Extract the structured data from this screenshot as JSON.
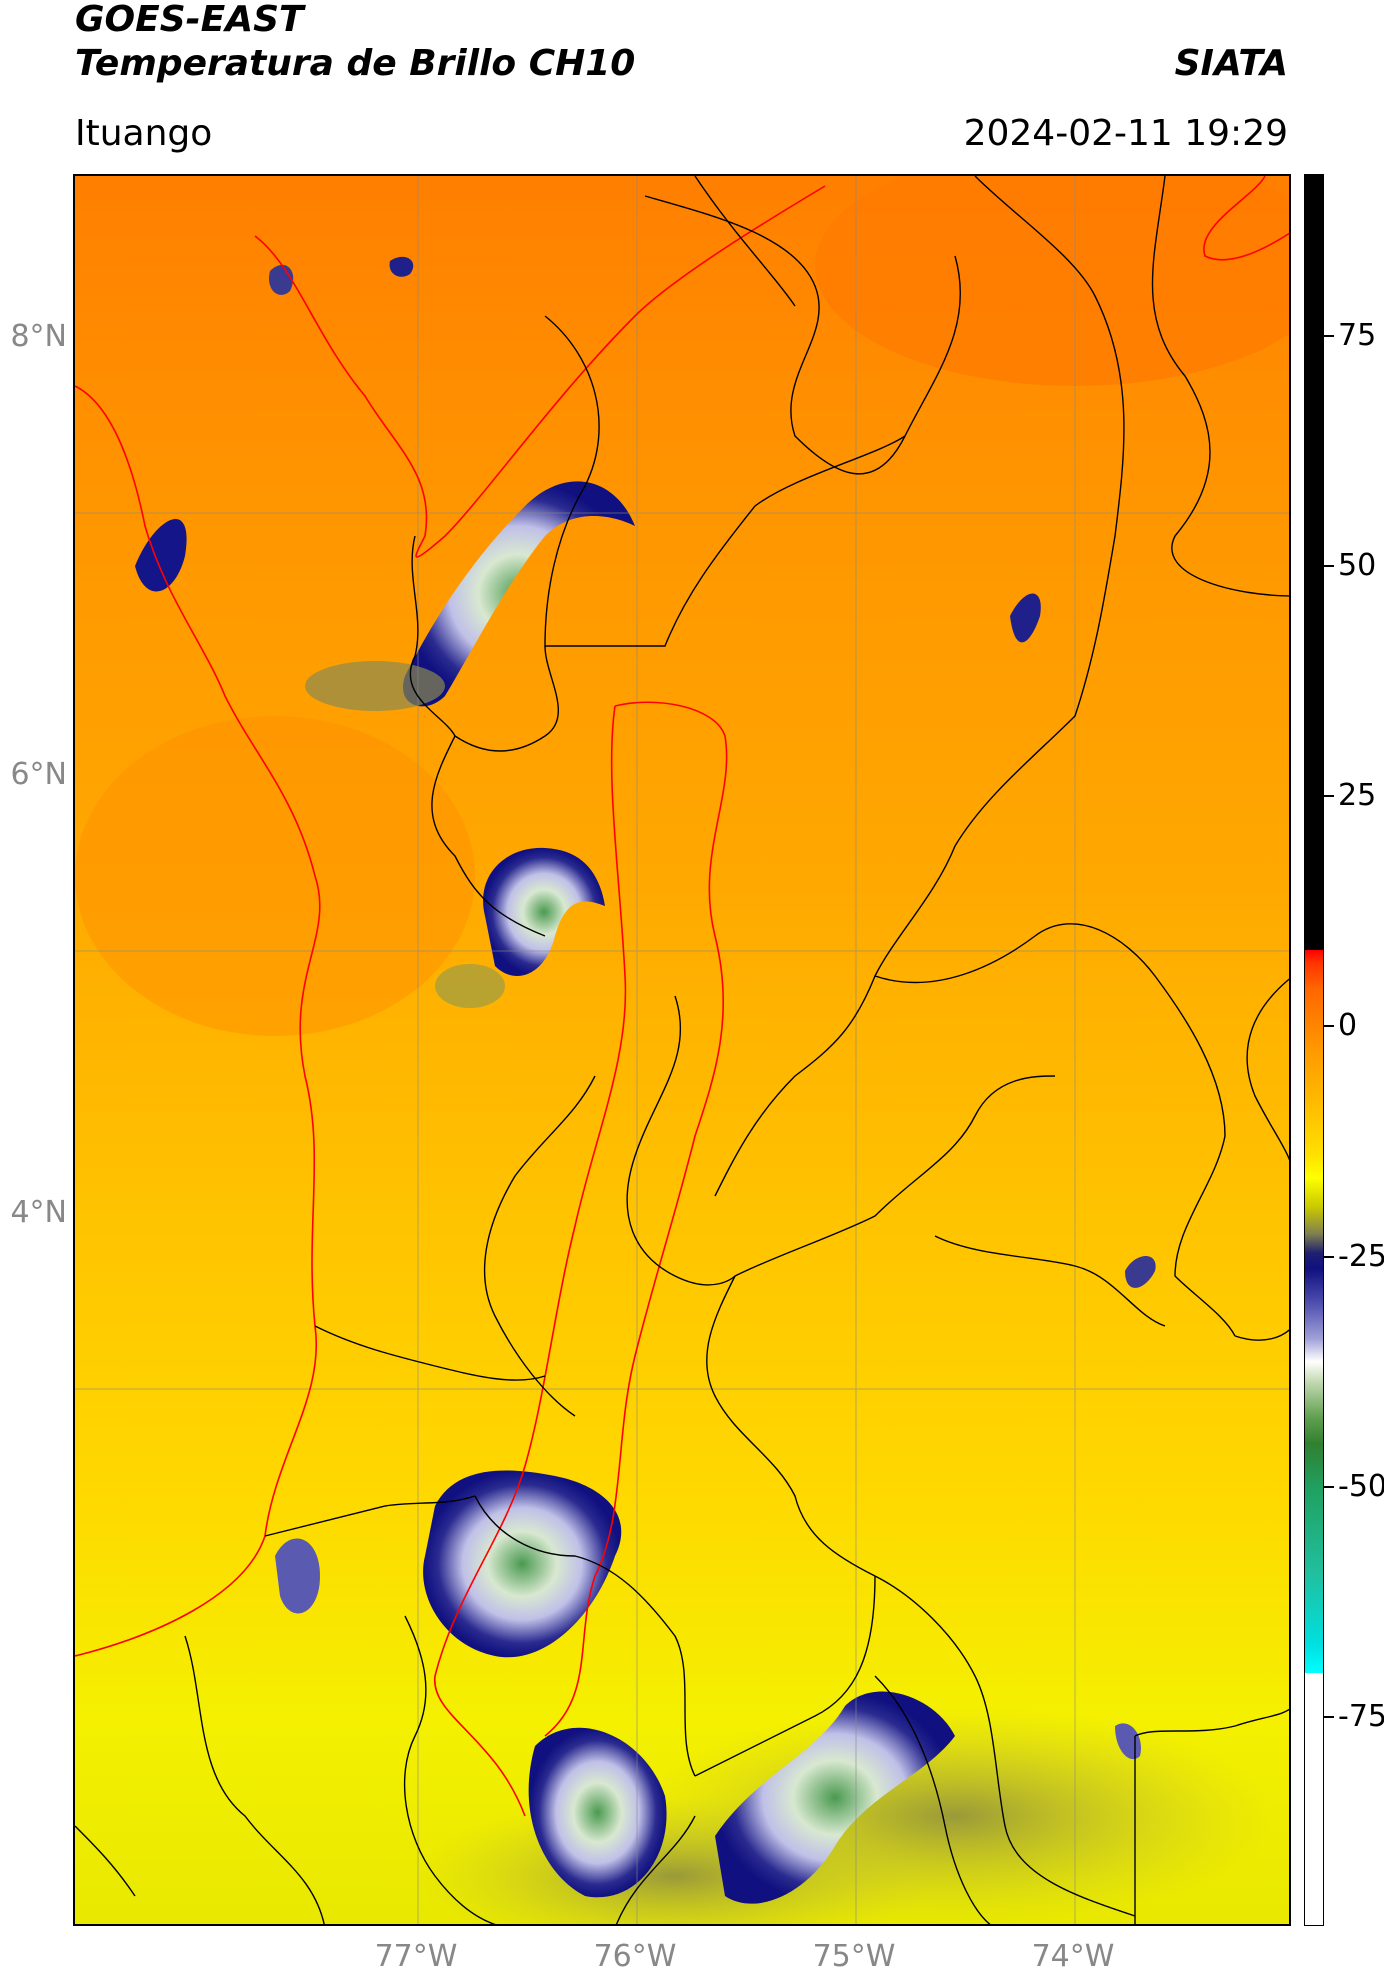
{
  "header": {
    "title_line1": "GOES-EAST",
    "title_line2": "Temperatura de Brillo CH10",
    "brand": "SIATA",
    "region": "Ituango",
    "timestamp": "2024-02-11 19:29"
  },
  "map": {
    "lat_labels": [
      "8°N",
      "6°N",
      "4°N"
    ],
    "lon_labels": [
      "77°W",
      "76°W",
      "75°W",
      "74°W"
    ],
    "colors": {
      "background_warm": "#ff8c00",
      "background_mid": "#ffaa00",
      "background_cool": "#ffee00",
      "cloud_dark": "#101080",
      "cloud_light": "#e8e8f8",
      "cloud_core": "#4a9a50",
      "department_border": "#ff0000",
      "municipal_border": "#000000",
      "grid": "#888888"
    }
  },
  "colorbar": {
    "ticks": [
      "75",
      "50",
      "25",
      "0",
      "-25",
      "-50",
      "-75"
    ],
    "colors": {
      "top": "#000000",
      "warm": "#ff0000",
      "mid": "#ffff00",
      "cold": "#101080",
      "coldest": "#00ffff"
    }
  }
}
